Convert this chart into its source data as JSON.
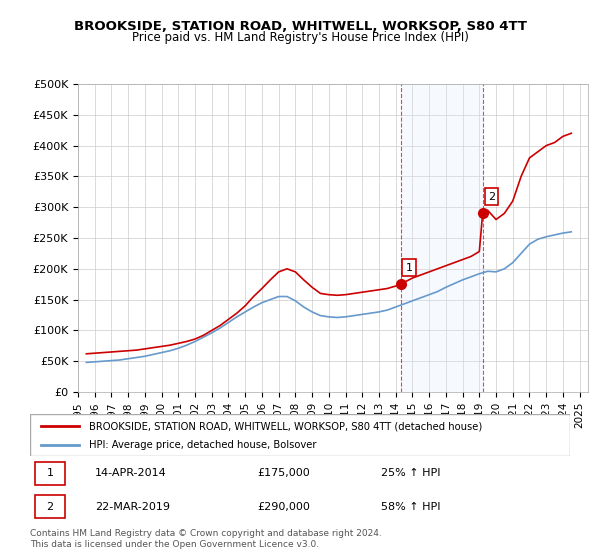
{
  "title": "BROOKSIDE, STATION ROAD, WHITWELL, WORKSOP, S80 4TT",
  "subtitle": "Price paid vs. HM Land Registry's House Price Index (HPI)",
  "legend_line1": "BROOKSIDE, STATION ROAD, WHITWELL, WORKSOP, S80 4TT (detached house)",
  "legend_line2": "HPI: Average price, detached house, Bolsover",
  "footer": "Contains HM Land Registry data © Crown copyright and database right 2024.\nThis data is licensed under the Open Government Licence v3.0.",
  "sale1_label": "1",
  "sale1_date": "14-APR-2014",
  "sale1_price": "£175,000",
  "sale1_hpi": "25% ↑ HPI",
  "sale1_year": 2014.29,
  "sale1_value": 175000,
  "sale2_label": "2",
  "sale2_date": "22-MAR-2019",
  "sale2_price": "£290,000",
  "sale2_hpi": "58% ↑ HPI",
  "sale2_year": 2019.22,
  "sale2_value": 290000,
  "red_color": "#cc0000",
  "blue_color": "#6699cc",
  "shade_color": "#ddeeff",
  "marker_box_color": "#cc0000",
  "ylim": [
    0,
    500000
  ],
  "xlim_start": 1995,
  "xlim_end": 2025.5,
  "yticks": [
    0,
    50000,
    100000,
    150000,
    200000,
    250000,
    300000,
    350000,
    400000,
    450000,
    500000
  ],
  "xticks": [
    1995,
    1996,
    1997,
    1998,
    1999,
    2000,
    2001,
    2002,
    2003,
    2004,
    2005,
    2006,
    2007,
    2008,
    2009,
    2010,
    2011,
    2012,
    2013,
    2014,
    2015,
    2016,
    2017,
    2018,
    2019,
    2020,
    2021,
    2022,
    2023,
    2024,
    2025
  ],
  "red_x": [
    1995.5,
    1996.0,
    1996.5,
    1997.0,
    1997.5,
    1998.0,
    1998.5,
    1999.0,
    1999.5,
    2000.0,
    2000.5,
    2001.0,
    2001.5,
    2002.0,
    2002.5,
    2003.0,
    2003.5,
    2004.0,
    2004.5,
    2005.0,
    2005.5,
    2006.0,
    2006.5,
    2007.0,
    2007.5,
    2008.0,
    2008.5,
    2009.0,
    2009.5,
    2010.0,
    2010.5,
    2011.0,
    2011.5,
    2012.0,
    2012.5,
    2013.0,
    2013.5,
    2014.0,
    2014.3,
    2014.5,
    2015.0,
    2015.5,
    2016.0,
    2016.5,
    2017.0,
    2017.5,
    2018.0,
    2018.5,
    2019.0,
    2019.2,
    2019.5,
    2020.0,
    2020.5,
    2021.0,
    2021.5,
    2022.0,
    2022.5,
    2023.0,
    2023.5,
    2024.0,
    2024.5
  ],
  "red_y": [
    62000,
    63000,
    64000,
    65000,
    66000,
    67000,
    68000,
    70000,
    72000,
    74000,
    76000,
    79000,
    82000,
    86000,
    92000,
    100000,
    108000,
    118000,
    128000,
    140000,
    155000,
    168000,
    182000,
    195000,
    200000,
    195000,
    182000,
    170000,
    160000,
    158000,
    157000,
    158000,
    160000,
    162000,
    164000,
    166000,
    168000,
    172000,
    175000,
    178000,
    185000,
    190000,
    195000,
    200000,
    205000,
    210000,
    215000,
    220000,
    228000,
    290000,
    295000,
    280000,
    290000,
    310000,
    350000,
    380000,
    390000,
    400000,
    405000,
    415000,
    420000
  ],
  "blue_x": [
    1995.5,
    1996.0,
    1996.5,
    1997.0,
    1997.5,
    1998.0,
    1998.5,
    1999.0,
    1999.5,
    2000.0,
    2000.5,
    2001.0,
    2001.5,
    2002.0,
    2002.5,
    2003.0,
    2003.5,
    2004.0,
    2004.5,
    2005.0,
    2005.5,
    2006.0,
    2006.5,
    2007.0,
    2007.5,
    2008.0,
    2008.5,
    2009.0,
    2009.5,
    2010.0,
    2010.5,
    2011.0,
    2011.5,
    2012.0,
    2012.5,
    2013.0,
    2013.5,
    2014.0,
    2014.5,
    2015.0,
    2015.5,
    2016.0,
    2016.5,
    2017.0,
    2017.5,
    2018.0,
    2018.5,
    2019.0,
    2019.5,
    2020.0,
    2020.5,
    2021.0,
    2021.5,
    2022.0,
    2022.5,
    2023.0,
    2023.5,
    2024.0,
    2024.5
  ],
  "blue_y": [
    48000,
    49000,
    50000,
    51000,
    52000,
    54000,
    56000,
    58000,
    61000,
    64000,
    67000,
    71000,
    76000,
    82000,
    89000,
    96000,
    104000,
    113000,
    122000,
    130000,
    138000,
    145000,
    150000,
    155000,
    155000,
    148000,
    138000,
    130000,
    124000,
    122000,
    121000,
    122000,
    124000,
    126000,
    128000,
    130000,
    133000,
    138000,
    143000,
    148000,
    153000,
    158000,
    163000,
    170000,
    176000,
    182000,
    187000,
    192000,
    196000,
    195000,
    200000,
    210000,
    225000,
    240000,
    248000,
    252000,
    255000,
    258000,
    260000
  ]
}
